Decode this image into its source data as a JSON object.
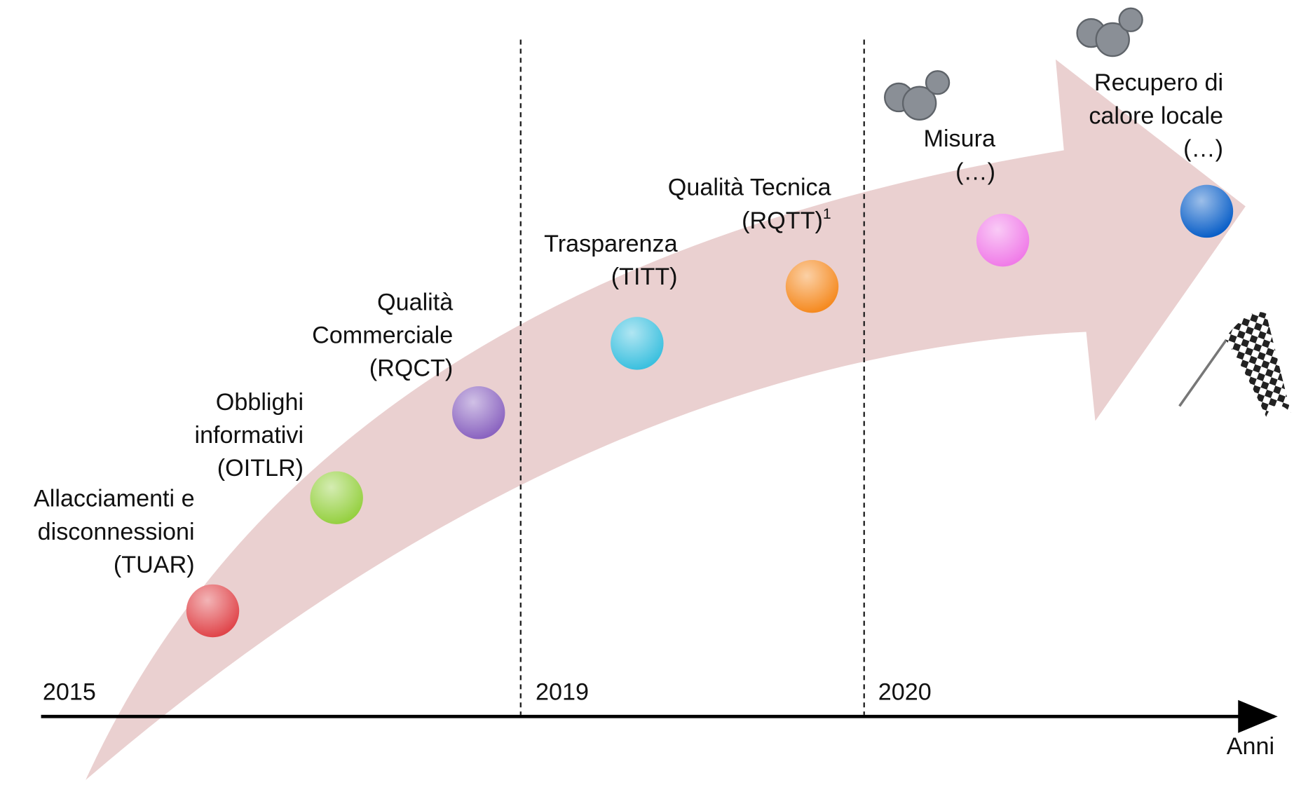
{
  "years": [
    "2015",
    "2019",
    "2020"
  ],
  "axis_label": "Anni",
  "milestones": [
    {
      "lines": [
        "Allacciamenti e",
        "disconnessioni",
        "(TUAR)"
      ]
    },
    {
      "lines": [
        "Obblighi",
        "informativi",
        "(OITLR)"
      ]
    },
    {
      "lines": [
        "Qualità",
        "Commerciale",
        "(RQCT)"
      ]
    },
    {
      "lines": [
        "Trasparenza",
        "(TITT)"
      ]
    },
    {
      "lines": [
        "Qualità Tecnica",
        "(RQTT)"
      ],
      "note_marker": "1"
    },
    {
      "lines": [
        "Misura",
        "(…)"
      ]
    },
    {
      "lines": [
        "Recupero di",
        "calore locale",
        "(…)"
      ]
    }
  ]
}
